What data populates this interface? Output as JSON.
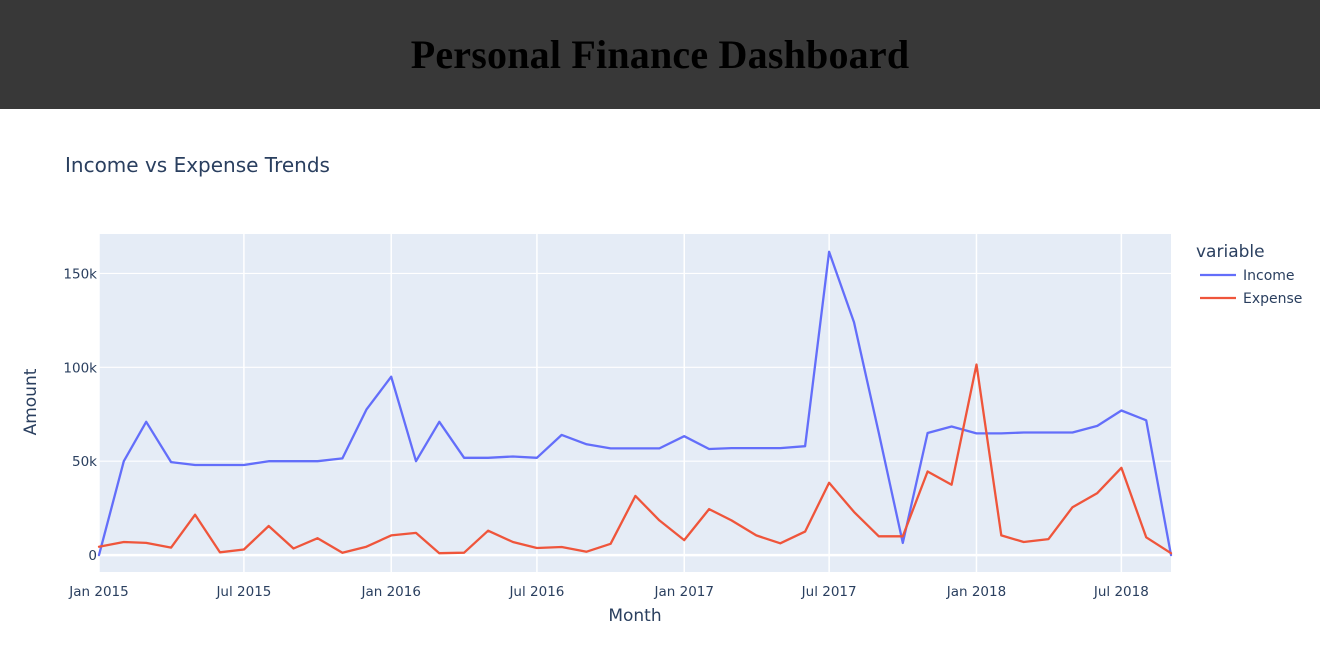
{
  "header": {
    "title": "Personal Finance Dashboard"
  },
  "chart_data": {
    "type": "line",
    "title": "Income vs Expense Trends",
    "xlabel": "Month",
    "ylabel": "Amount",
    "legend_title": "variable",
    "legend_position": "right",
    "grid": true,
    "x": [
      "2015-01",
      "2015-02",
      "2015-03",
      "2015-04",
      "2015-05",
      "2015-06",
      "2015-07",
      "2015-08",
      "2015-09",
      "2015-10",
      "2015-11",
      "2015-12",
      "2016-01",
      "2016-02",
      "2016-03",
      "2016-04",
      "2016-05",
      "2016-06",
      "2016-07",
      "2016-08",
      "2016-09",
      "2016-10",
      "2016-11",
      "2016-12",
      "2017-01",
      "2017-02",
      "2017-03",
      "2017-04",
      "2017-05",
      "2017-06",
      "2017-07",
      "2017-08",
      "2017-09",
      "2017-10",
      "2017-11",
      "2017-12",
      "2018-01",
      "2018-02",
      "2018-03",
      "2018-04",
      "2018-05",
      "2018-06",
      "2018-07",
      "2018-08",
      "2018-09"
    ],
    "xlim": [
      "2015-01-01",
      "2018-09-01"
    ],
    "ylim": [
      -9000,
      171000
    ],
    "x_ticks": [
      {
        "date": "2015-01-01",
        "label": "Jan 2015"
      },
      {
        "date": "2015-07-01",
        "label": "Jul 2015"
      },
      {
        "date": "2016-01-01",
        "label": "Jan 2016"
      },
      {
        "date": "2016-07-01",
        "label": "Jul 2016"
      },
      {
        "date": "2017-01-01",
        "label": "Jan 2017"
      },
      {
        "date": "2017-07-01",
        "label": "Jul 2017"
      },
      {
        "date": "2018-01-01",
        "label": "Jan 2018"
      },
      {
        "date": "2018-07-01",
        "label": "Jul 2018"
      }
    ],
    "y_ticks": [
      {
        "value": 0,
        "label": "0"
      },
      {
        "value": 50000,
        "label": "50k"
      },
      {
        "value": 100000,
        "label": "100k"
      },
      {
        "value": 150000,
        "label": "150k"
      }
    ],
    "series": [
      {
        "name": "Income",
        "color": "#636efa",
        "values": [
          0,
          50000,
          71000,
          49500,
          48000,
          48000,
          48000,
          50000,
          50000,
          50000,
          51500,
          77500,
          95000,
          50000,
          71000,
          51800,
          51800,
          52500,
          51800,
          64000,
          59000,
          56800,
          56800,
          56800,
          63300,
          56500,
          57000,
          57000,
          57000,
          58000,
          161500,
          124000,
          65000,
          6500,
          65000,
          68500,
          64800,
          64800,
          65300,
          65300,
          65300,
          68800,
          77000,
          71800,
          0
        ]
      },
      {
        "name": "Expense",
        "color": "#ef553b",
        "values": [
          4500,
          7000,
          6500,
          4000,
          21500,
          1500,
          3000,
          15500,
          3500,
          9000,
          1200,
          4500,
          10500,
          11800,
          1000,
          1300,
          13000,
          7000,
          3800,
          4300,
          1800,
          6000,
          31500,
          18500,
          8000,
          24500,
          18500,
          10500,
          6300,
          12500,
          38500,
          23000,
          10000,
          10000,
          44500,
          37500,
          101500,
          10500,
          7000,
          8500,
          25500,
          33000,
          46500,
          9500,
          1000
        ]
      }
    ]
  }
}
